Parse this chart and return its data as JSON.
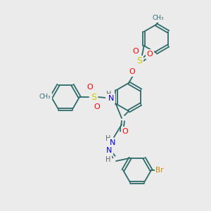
{
  "background_color": "#ebebeb",
  "bond_color": "#2d6b6b",
  "atom_colors": {
    "S": "#cccc00",
    "O": "#ff0000",
    "N": "#0000ee",
    "H": "#606060",
    "Br": "#cc8800",
    "C": "#2d6b6b",
    "CH3": "#2d6b6b"
  },
  "figsize": [
    3.0,
    3.0
  ],
  "dpi": 100
}
